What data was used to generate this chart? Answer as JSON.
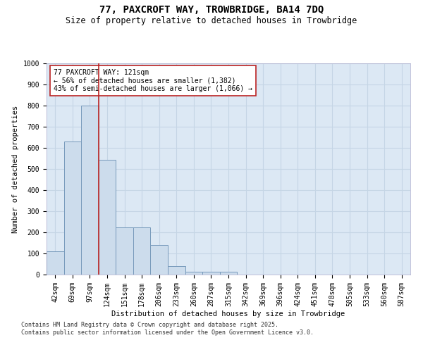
{
  "title_line1": "77, PAXCROFT WAY, TROWBRIDGE, BA14 7DQ",
  "title_line2": "Size of property relative to detached houses in Trowbridge",
  "xlabel": "Distribution of detached houses by size in Trowbridge",
  "ylabel": "Number of detached properties",
  "categories": [
    "42sqm",
    "69sqm",
    "97sqm",
    "124sqm",
    "151sqm",
    "178sqm",
    "206sqm",
    "233sqm",
    "260sqm",
    "287sqm",
    "315sqm",
    "342sqm",
    "369sqm",
    "396sqm",
    "424sqm",
    "451sqm",
    "478sqm",
    "505sqm",
    "533sqm",
    "560sqm",
    "587sqm"
  ],
  "values": [
    110,
    630,
    800,
    545,
    225,
    225,
    140,
    40,
    15,
    15,
    15,
    0,
    0,
    0,
    0,
    0,
    0,
    0,
    0,
    0,
    0
  ],
  "bar_color": "#ccdcec",
  "bar_edge_color": "#7799bb",
  "vline_index": 2.5,
  "vline_color": "#bb2222",
  "annotation_text": "77 PAXCROFT WAY: 121sqm\n← 56% of detached houses are smaller (1,382)\n43% of semi-detached houses are larger (1,066) →",
  "annotation_box_edgecolor": "#bb2222",
  "ylim": [
    0,
    1000
  ],
  "yticks": [
    0,
    100,
    200,
    300,
    400,
    500,
    600,
    700,
    800,
    900,
    1000
  ],
  "grid_color": "#c5d5e5",
  "background_color": "#dce8f4",
  "footer_text": "Contains HM Land Registry data © Crown copyright and database right 2025.\nContains public sector information licensed under the Open Government Licence v3.0.",
  "title_fontsize": 10,
  "subtitle_fontsize": 8.5,
  "axis_label_fontsize": 7.5,
  "tick_fontsize": 7,
  "annotation_fontsize": 7,
  "footer_fontsize": 6
}
